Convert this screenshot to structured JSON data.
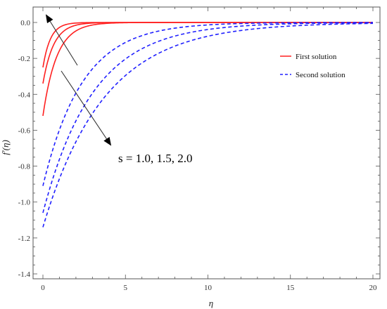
{
  "chart_data": {
    "type": "line",
    "xlabel": "η",
    "ylabel": "f′(η)",
    "xlim": [
      0,
      20
    ],
    "ylim": [
      -1.4,
      0.05
    ],
    "x_ticks": [
      0,
      5,
      10,
      15,
      20
    ],
    "y_ticks": [
      0.0,
      -0.2,
      -0.4,
      -0.6,
      -0.8,
      -1.0,
      -1.2,
      -1.4
    ],
    "y_tick_labels": [
      "0.0",
      "-0.2",
      "-0.4",
      "-0.6",
      "-0.8",
      "-1.0",
      "-1.2",
      "-1.4"
    ],
    "grid": false,
    "legend": {
      "placement": "top-right",
      "entries": [
        {
          "label": "First solution",
          "color": "#ff2020",
          "dash": "solid"
        },
        {
          "label": "Second solution",
          "color": "#2020ff",
          "dash": "dashed"
        }
      ]
    },
    "annotation": {
      "text": "s = 1.0, 1.5, 2.0",
      "arrows": 2
    },
    "series": [
      {
        "group": "First solution",
        "color": "#ff2020",
        "dash": "solid",
        "y0": -0.25,
        "decay": 2.2
      },
      {
        "group": "First solution",
        "color": "#ff2020",
        "dash": "solid",
        "y0": -0.34,
        "decay": 1.55
      },
      {
        "group": "First solution",
        "color": "#ff2020",
        "dash": "solid",
        "y0": -0.52,
        "decay": 1.2
      },
      {
        "group": "Second solution",
        "color": "#2020ff",
        "dash": "dashed",
        "y0": -0.91,
        "decay": 0.42
      },
      {
        "group": "Second solution",
        "color": "#2020ff",
        "dash": "dashed",
        "y0": -1.06,
        "decay": 0.33
      },
      {
        "group": "Second solution",
        "color": "#2020ff",
        "dash": "dashed",
        "y0": -1.14,
        "decay": 0.27
      }
    ]
  }
}
